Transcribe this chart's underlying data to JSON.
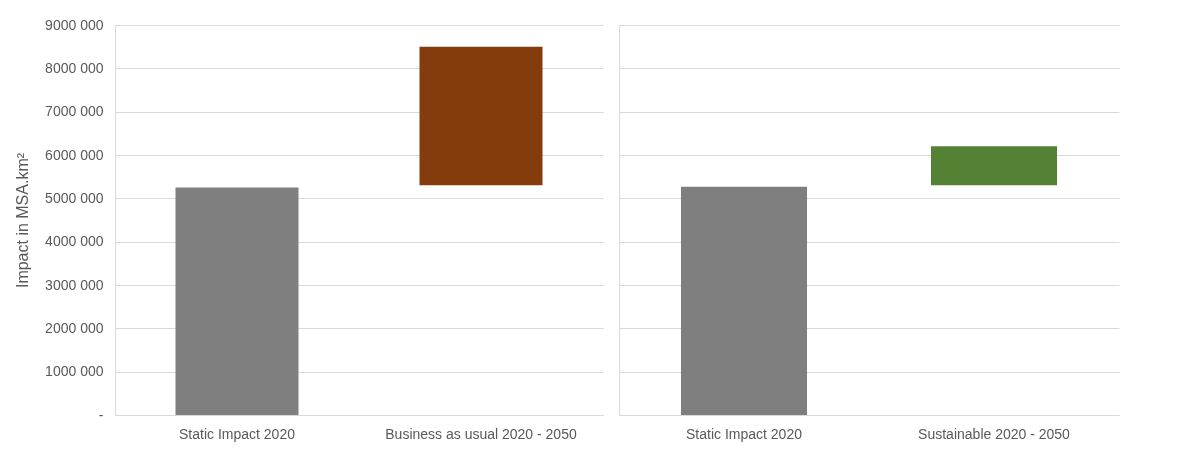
{
  "chart_data": [
    {
      "type": "bar",
      "ylabel": "Impact in MSA.km²",
      "categories": [
        "Static Impact 2020",
        "Business as usual 2020 - 2050"
      ],
      "values": [
        5250000,
        3200000
      ],
      "base": [
        0,
        5300000
      ],
      "colors": [
        "#7f7f7f",
        "#843c0c"
      ],
      "ylim": [
        0,
        9000000
      ],
      "yticks": [
        {
          "value": 0,
          "label": "-"
        },
        {
          "value": 1000000,
          "label": "1000 000"
        },
        {
          "value": 2000000,
          "label": "2000 000"
        },
        {
          "value": 3000000,
          "label": "3000 000"
        },
        {
          "value": 4000000,
          "label": "4000 000"
        },
        {
          "value": 5000000,
          "label": "5000 000"
        },
        {
          "value": 6000000,
          "label": "6000 000"
        },
        {
          "value": 7000000,
          "label": "7000 000"
        },
        {
          "value": 8000000,
          "label": "8000 000"
        },
        {
          "value": 9000000,
          "label": "9000 000"
        }
      ],
      "grid": "y"
    },
    {
      "type": "bar",
      "categories": [
        "Static Impact 2020",
        "Sustainable 2020 - 2050"
      ],
      "values": [
        5270000,
        900000
      ],
      "base": [
        0,
        5300000
      ],
      "colors": [
        "#7f7f7f",
        "#548235"
      ],
      "ylim": [
        0,
        9000000
      ],
      "yticks": [
        0,
        1000000,
        2000000,
        3000000,
        4000000,
        5000000,
        6000000,
        7000000,
        8000000,
        9000000
      ],
      "grid": "y",
      "tick_labels": "x"
    }
  ]
}
